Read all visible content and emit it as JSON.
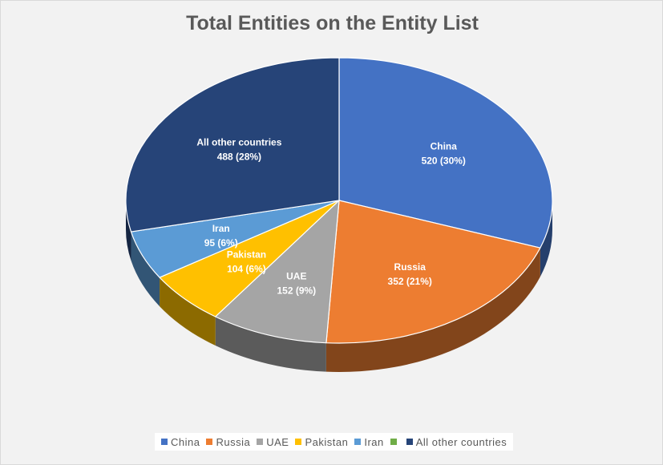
{
  "chart_data": {
    "type": "pie",
    "title": "Total Entities on the Entity List",
    "slices": [
      {
        "name": "China",
        "value": 520,
        "label_name": "China",
        "label_value": "520 (30%)",
        "color": "#4472c4",
        "label_color": "#ffffff"
      },
      {
        "name": "Russia",
        "value": 352,
        "label_name": "Russia",
        "label_value": "352 (21%)",
        "color": "#ed7d31",
        "label_color": "#ffffff"
      },
      {
        "name": "UAE",
        "value": 152,
        "label_name": "UAE",
        "label_value": "152 (9%)",
        "color": "#a5a5a5",
        "label_color": "#ffffff"
      },
      {
        "name": "Pakistan",
        "value": 104,
        "label_name": "Pakistan",
        "label_value": "104 (6%)",
        "color": "#ffc000",
        "label_color": "#ffffff"
      },
      {
        "name": "Iran",
        "value": 95,
        "label_name": "Iran",
        "label_value": "95 (6%)",
        "color": "#5b9bd5",
        "label_color": "#ffffff"
      },
      {
        "name": "All other countries",
        "value": 488,
        "label_name": "All other countries",
        "label_value": "488 (28%)",
        "color": "#264478",
        "label_color": "#ffffff"
      }
    ],
    "legend": {
      "position": "bottom",
      "entries": [
        {
          "label": "China",
          "color": "#4472c4"
        },
        {
          "label": "Russia",
          "color": "#ed7d31"
        },
        {
          "label": "UAE",
          "color": "#a5a5a5"
        },
        {
          "label": "Pakistan",
          "color": "#ffc000"
        },
        {
          "label": "Iran",
          "color": "#5b9bd5"
        },
        {
          "label": "",
          "color": "#70ad47"
        },
        {
          "label": "All other countries",
          "color": "#264478"
        }
      ]
    }
  }
}
